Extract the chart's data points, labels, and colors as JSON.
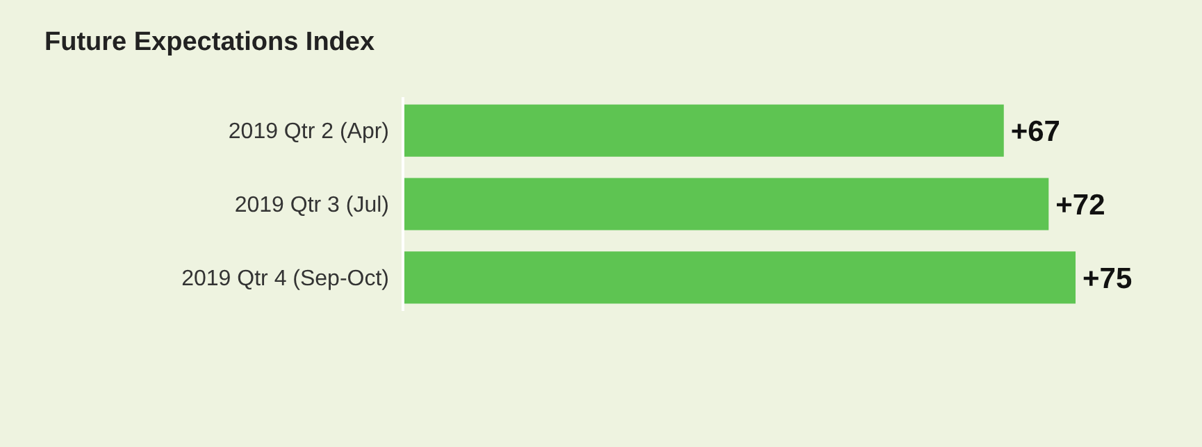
{
  "chart_data": {
    "type": "bar",
    "orientation": "horizontal",
    "title": "Future Expectations Index",
    "categories": [
      "2019 Qtr 2 (Apr)",
      "2019 Qtr 3 (Jul)",
      "2019 Qtr 4 (Sep-Oct)"
    ],
    "values": [
      67,
      72,
      75
    ],
    "value_labels": [
      "+67",
      "+72",
      "+75"
    ],
    "color": "#5ec452"
  }
}
